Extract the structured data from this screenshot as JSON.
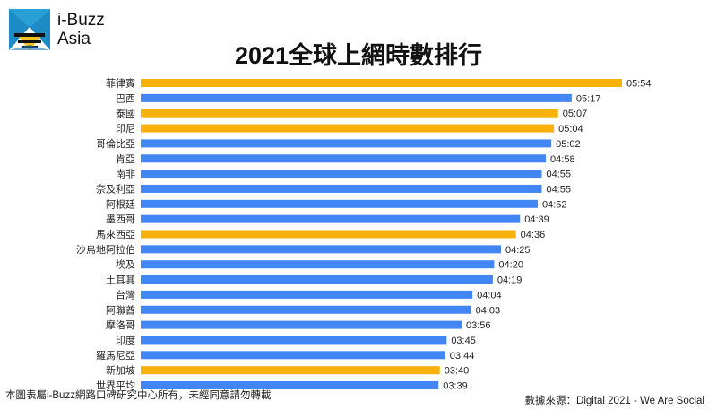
{
  "brand": {
    "line1": "i-Buzz",
    "line2": "Asia",
    "logo_icon": "ibuzz-bee-logo"
  },
  "title": "2021全球上網時數排行",
  "colors": {
    "blue": "#4285f4",
    "orange": "#f7b10a"
  },
  "footer": {
    "left": "本圖表屬i-Buzz網路口碑研究中心所有，未經同意請勿轉載",
    "right": "數據來源：Digital 2021 - We Are Social"
  },
  "chart_data": {
    "type": "bar",
    "orientation": "horizontal",
    "title": "2021全球上網時數排行",
    "unit": "hh:mm",
    "categories": [
      "菲律賓",
      "巴西",
      "泰國",
      "印尼",
      "哥倫比亞",
      "肯亞",
      "南非",
      "奈及利亞",
      "阿根廷",
      "墨西哥",
      "馬來西亞",
      "沙烏地阿拉伯",
      "埃及",
      "土耳其",
      "台灣",
      "阿聯酋",
      "摩洛哥",
      "印度",
      "羅馬尼亞",
      "新加坡",
      "世界平均"
    ],
    "labels": [
      "05:54",
      "05:17",
      "05:07",
      "05:04",
      "05:02",
      "04:58",
      "04:55",
      "04:55",
      "04:52",
      "04:39",
      "04:36",
      "04:25",
      "04:20",
      "04:19",
      "04:04",
      "04:03",
      "03:56",
      "03:45",
      "03:44",
      "03:40",
      "03:39"
    ],
    "values": [
      354,
      317,
      307,
      304,
      302,
      298,
      295,
      295,
      292,
      279,
      276,
      265,
      260,
      259,
      244,
      243,
      236,
      225,
      224,
      220,
      219
    ],
    "highlighted": [
      "菲律賓",
      "泰國",
      "印尼",
      "馬來西亞",
      "新加坡"
    ],
    "xlim": [
      0,
      354
    ],
    "grid": false,
    "legend": "none"
  }
}
